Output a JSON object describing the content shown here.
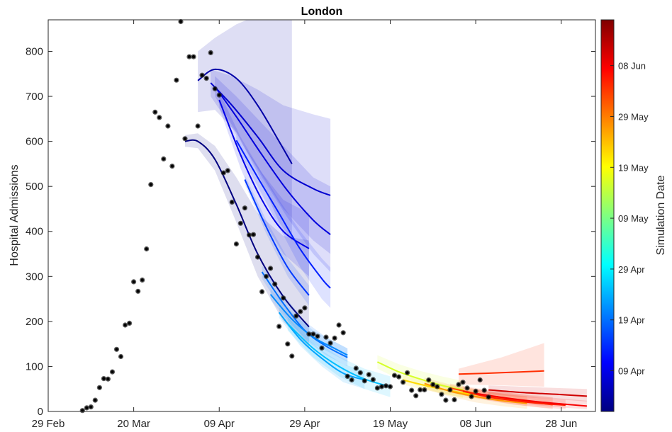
{
  "chart_data": {
    "type": "scatter",
    "title": "London",
    "ylabel": "Hospital Admissions",
    "colorbar_label": "Simulation Date",
    "x_axis": {
      "start": "2020-02-29",
      "end": "2020-07-06",
      "tick_dates": [
        "2020-02-29",
        "2020-03-20",
        "2020-04-09",
        "2020-04-29",
        "2020-05-19",
        "2020-06-08",
        "2020-06-28"
      ],
      "tick_labels": [
        "29 Feb",
        "20 Mar",
        "09 Apr",
        "29 Apr",
        "19 May",
        "08 Jun",
        "28 Jun"
      ]
    },
    "y_axis": {
      "min": 0,
      "max": 870,
      "ticks": [
        0,
        100,
        200,
        300,
        400,
        500,
        600,
        700,
        800
      ]
    },
    "colorbar": {
      "min_date": "2020-04-01",
      "max_date": "2020-06-17",
      "tick_dates": [
        "2020-04-09",
        "2020-04-19",
        "2020-04-29",
        "2020-05-09",
        "2020-05-19",
        "2020-05-29",
        "2020-06-08"
      ],
      "tick_labels": [
        "09 Apr",
        "19 Apr",
        "29 Apr",
        "09 May",
        "19 May",
        "29 May",
        "08 Jun"
      ]
    },
    "observed": [
      [
        "2020-03-08",
        2
      ],
      [
        "2020-03-09",
        8
      ],
      [
        "2020-03-10",
        10
      ],
      [
        "2020-03-11",
        25
      ],
      [
        "2020-03-12",
        53
      ],
      [
        "2020-03-13",
        73
      ],
      [
        "2020-03-14",
        72
      ],
      [
        "2020-03-15",
        88
      ],
      [
        "2020-03-16",
        138
      ],
      [
        "2020-03-17",
        122
      ],
      [
        "2020-03-18",
        192
      ],
      [
        "2020-03-19",
        196
      ],
      [
        "2020-03-20",
        288
      ],
      [
        "2020-03-21",
        267
      ],
      [
        "2020-03-22",
        292
      ],
      [
        "2020-03-23",
        361
      ],
      [
        "2020-03-24",
        504
      ],
      [
        "2020-03-25",
        665
      ],
      [
        "2020-03-26",
        653
      ],
      [
        "2020-03-27",
        561
      ],
      [
        "2020-03-28",
        634
      ],
      [
        "2020-03-29",
        545
      ],
      [
        "2020-03-30",
        736
      ],
      [
        "2020-03-31",
        866
      ],
      [
        "2020-04-01",
        606
      ],
      [
        "2020-04-02",
        788
      ],
      [
        "2020-04-03",
        788
      ],
      [
        "2020-04-04",
        634
      ],
      [
        "2020-04-05",
        747
      ],
      [
        "2020-04-06",
        740
      ],
      [
        "2020-04-07",
        797
      ],
      [
        "2020-04-08",
        717
      ],
      [
        "2020-04-09",
        703
      ],
      [
        "2020-04-10",
        530
      ],
      [
        "2020-04-11",
        535
      ],
      [
        "2020-04-12",
        465
      ],
      [
        "2020-04-13",
        372
      ],
      [
        "2020-04-14",
        418
      ],
      [
        "2020-04-15",
        452
      ],
      [
        "2020-04-16",
        392
      ],
      [
        "2020-04-17",
        393
      ],
      [
        "2020-04-18",
        343
      ],
      [
        "2020-04-19",
        266
      ],
      [
        "2020-04-20",
        300
      ],
      [
        "2020-04-21",
        318
      ],
      [
        "2020-04-22",
        283
      ],
      [
        "2020-04-23",
        189
      ],
      [
        "2020-04-24",
        252
      ],
      [
        "2020-04-25",
        150
      ],
      [
        "2020-04-26",
        123
      ],
      [
        "2020-04-27",
        212
      ],
      [
        "2020-04-28",
        222
      ],
      [
        "2020-04-29",
        230
      ],
      [
        "2020-04-30",
        172
      ],
      [
        "2020-05-01",
        172
      ],
      [
        "2020-05-02",
        167
      ],
      [
        "2020-05-03",
        141
      ],
      [
        "2020-05-04",
        165
      ],
      [
        "2020-05-05",
        152
      ],
      [
        "2020-05-06",
        163
      ],
      [
        "2020-05-07",
        192
      ],
      [
        "2020-05-08",
        175
      ],
      [
        "2020-05-09",
        78
      ],
      [
        "2020-05-10",
        70
      ],
      [
        "2020-05-11",
        96
      ],
      [
        "2020-05-12",
        86
      ],
      [
        "2020-05-13",
        68
      ],
      [
        "2020-05-14",
        82
      ],
      [
        "2020-05-15",
        71
      ],
      [
        "2020-05-16",
        52
      ],
      [
        "2020-05-17",
        55
      ],
      [
        "2020-05-18",
        57
      ],
      [
        "2020-05-19",
        55
      ],
      [
        "2020-05-20",
        80
      ],
      [
        "2020-05-21",
        77
      ],
      [
        "2020-05-22",
        65
      ],
      [
        "2020-05-23",
        86
      ],
      [
        "2020-05-24",
        47
      ],
      [
        "2020-05-25",
        35
      ],
      [
        "2020-05-26",
        48
      ],
      [
        "2020-05-27",
        48
      ],
      [
        "2020-05-28",
        70
      ],
      [
        "2020-05-29",
        60
      ],
      [
        "2020-05-30",
        55
      ],
      [
        "2020-05-31",
        38
      ],
      [
        "2020-06-01",
        25
      ],
      [
        "2020-06-02",
        48
      ],
      [
        "2020-06-03",
        26
      ],
      [
        "2020-06-04",
        60
      ],
      [
        "2020-06-05",
        65
      ],
      [
        "2020-06-06",
        52
      ],
      [
        "2020-06-07",
        33
      ],
      [
        "2020-06-08",
        45
      ],
      [
        "2020-06-09",
        70
      ],
      [
        "2020-06-10",
        47
      ],
      [
        "2020-06-11",
        32
      ]
    ],
    "forecasts": [
      {
        "sim": "2020-04-01",
        "x": [
          "2020-04-01",
          "2020-04-04",
          "2020-04-08",
          "2020-04-13",
          "2020-04-18",
          "2020-04-24",
          "2020-04-30"
        ],
        "y": [
          600,
          600,
          560,
          460,
          350,
          255,
          188
        ],
        "lower": [
          588,
          585,
          535,
          420,
          300,
          200,
          140
        ],
        "upper": [
          614,
          618,
          590,
          520,
          440,
          390,
          380
        ]
      },
      {
        "sim": "2020-04-04",
        "x": [
          "2020-04-04",
          "2020-04-08",
          "2020-04-13",
          "2020-04-18",
          "2020-04-23",
          "2020-04-26"
        ],
        "y": [
          735,
          760,
          740,
          680,
          600,
          550
        ],
        "lower": [
          665,
          670,
          620,
          530,
          420,
          380
        ],
        "upper": [
          800,
          830,
          860,
          880,
          880,
          870
        ]
      },
      {
        "sim": "2020-04-07",
        "x": [
          "2020-04-07",
          "2020-04-12",
          "2020-04-18",
          "2020-04-24",
          "2020-05-01",
          "2020-05-05"
        ],
        "y": [
          730,
          680,
          610,
          535,
          495,
          480
        ],
        "lower": [
          700,
          630,
          540,
          450,
          380,
          350
        ],
        "upper": [
          760,
          745,
          715,
          680,
          660,
          650
        ]
      },
      {
        "sim": "2020-04-08",
        "x": [
          "2020-04-08",
          "2020-04-13",
          "2020-04-19",
          "2020-04-25",
          "2020-05-01",
          "2020-05-05"
        ],
        "y": [
          722,
          655,
          570,
          490,
          425,
          393
        ],
        "lower": [
          700,
          620,
          520,
          430,
          350,
          310
        ],
        "upper": [
          745,
          700,
          640,
          580,
          520,
          500
        ]
      },
      {
        "sim": "2020-04-09",
        "x": [
          "2020-04-09",
          "2020-04-14",
          "2020-04-19",
          "2020-04-24",
          "2020-04-30"
        ],
        "y": [
          692,
          570,
          470,
          400,
          362
        ],
        "lower": [
          675,
          540,
          430,
          350,
          300
        ],
        "upper": [
          710,
          610,
          530,
          470,
          440
        ]
      },
      {
        "sim": "2020-04-13",
        "x": [
          "2020-04-13",
          "2020-04-18",
          "2020-04-23",
          "2020-04-28",
          "2020-05-03",
          "2020-05-05"
        ],
        "y": [
          602,
          520,
          440,
          360,
          295,
          274
        ],
        "lower": [
          590,
          500,
          410,
          320,
          250,
          230
        ],
        "upper": [
          615,
          545,
          470,
          400,
          340,
          320
        ]
      },
      {
        "sim": "2020-04-15",
        "x": [
          "2020-04-15",
          "2020-04-20",
          "2020-04-25",
          "2020-04-30"
        ],
        "y": [
          515,
          410,
          320,
          258
        ],
        "lower": [
          505,
          395,
          300,
          235
        ],
        "upper": [
          525,
          425,
          340,
          280
        ]
      },
      {
        "sim": "2020-04-19",
        "x": [
          "2020-04-19",
          "2020-04-24",
          "2020-04-29",
          "2020-05-04",
          "2020-05-09"
        ],
        "y": [
          310,
          240,
          180,
          145,
          120
        ],
        "lower": [
          295,
          220,
          160,
          125,
          100
        ],
        "upper": [
          325,
          260,
          200,
          165,
          140
        ]
      },
      {
        "sim": "2020-04-21",
        "x": [
          "2020-04-21",
          "2020-04-26",
          "2020-05-01",
          "2020-05-06",
          "2020-05-09"
        ],
        "y": [
          260,
          205,
          165,
          140,
          125
        ],
        "lower": [
          248,
          190,
          150,
          125,
          110
        ],
        "upper": [
          272,
          220,
          180,
          155,
          140
        ]
      },
      {
        "sim": "2020-04-23",
        "x": [
          "2020-04-23",
          "2020-04-28",
          "2020-05-03",
          "2020-05-08",
          "2020-05-13"
        ],
        "y": [
          220,
          160,
          118,
          85,
          70
        ],
        "lower": [
          208,
          145,
          100,
          65,
          50
        ],
        "upper": [
          232,
          175,
          135,
          105,
          90
        ]
      },
      {
        "sim": "2020-04-25",
        "x": [
          "2020-04-25",
          "2020-05-01",
          "2020-05-07",
          "2020-05-13",
          "2020-05-19"
        ],
        "y": [
          195,
          140,
          100,
          72,
          55
        ],
        "lower": [
          180,
          120,
          78,
          50,
          32
        ],
        "upper": [
          210,
          160,
          122,
          95,
          78
        ]
      },
      {
        "sim": "2020-05-16",
        "x": [
          "2020-05-16",
          "2020-05-21",
          "2020-05-26",
          "2020-05-31",
          "2020-06-05"
        ],
        "y": [
          110,
          88,
          72,
          58,
          48
        ],
        "lower": [
          95,
          72,
          55,
          40,
          30
        ],
        "upper": [
          125,
          105,
          90,
          78,
          68
        ]
      },
      {
        "sim": "2020-05-22",
        "x": [
          "2020-05-22",
          "2020-05-27",
          "2020-06-01",
          "2020-06-06",
          "2020-06-09"
        ],
        "y": [
          70,
          58,
          48,
          40,
          36
        ],
        "lower": [
          60,
          48,
          38,
          30,
          26
        ],
        "upper": [
          80,
          70,
          60,
          52,
          48
        ]
      },
      {
        "sim": "2020-05-27",
        "x": [
          "2020-05-27",
          "2020-06-02",
          "2020-06-08",
          "2020-06-14",
          "2020-06-20"
        ],
        "y": [
          62,
          45,
          33,
          24,
          18
        ],
        "lower": [
          50,
          33,
          20,
          12,
          6
        ],
        "upper": [
          75,
          60,
          48,
          40,
          34
        ]
      },
      {
        "sim": "2020-06-02",
        "x": [
          "2020-06-02",
          "2020-06-08",
          "2020-06-14",
          "2020-06-20",
          "2020-06-26"
        ],
        "y": [
          52,
          40,
          30,
          22,
          15
        ],
        "lower": [
          42,
          30,
          20,
          12,
          5
        ],
        "upper": [
          62,
          52,
          44,
          38,
          32
        ]
      },
      {
        "sim": "2020-06-04",
        "x": [
          "2020-06-04",
          "2020-06-14",
          "2020-06-24"
        ],
        "y": [
          83,
          86,
          90
        ],
        "lower": [
          60,
          58,
          55
        ],
        "upper": [
          95,
          120,
          152
        ]
      },
      {
        "sim": "2020-06-05",
        "x": [
          "2020-06-05",
          "2020-06-11",
          "2020-06-17",
          "2020-06-23",
          "2020-06-29"
        ],
        "y": [
          45,
          32,
          24,
          18,
          14
        ],
        "lower": [
          36,
          24,
          15,
          9,
          5
        ],
        "upper": [
          56,
          44,
          36,
          30,
          26
        ]
      },
      {
        "sim": "2020-06-08",
        "x": [
          "2020-06-08",
          "2020-06-15",
          "2020-06-22",
          "2020-06-29",
          "2020-07-04"
        ],
        "y": [
          40,
          30,
          22,
          16,
          12
        ],
        "lower": [
          32,
          22,
          14,
          8,
          5
        ],
        "upper": [
          50,
          42,
          34,
          28,
          24
        ]
      },
      {
        "sim": "2020-06-11",
        "x": [
          "2020-06-11",
          "2020-06-19",
          "2020-06-27",
          "2020-07-04"
        ],
        "y": [
          48,
          42,
          38,
          34
        ],
        "lower": [
          38,
          32,
          27,
          22
        ],
        "upper": [
          58,
          55,
          52,
          50
        ]
      }
    ]
  }
}
